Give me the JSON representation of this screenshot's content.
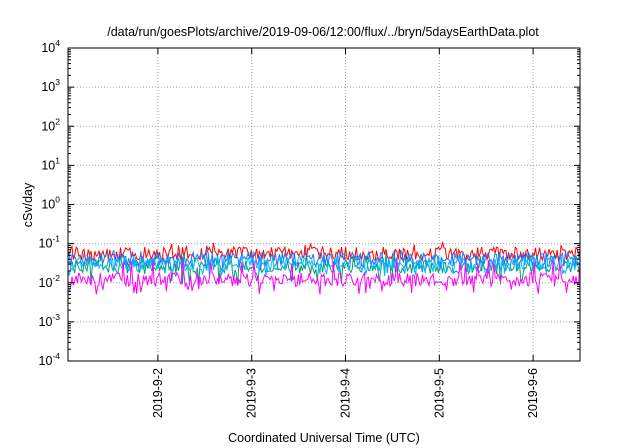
{
  "chart_data": {
    "type": "line",
    "title": "/data/run/goesPlots/archive/2019-09-06/12:00/flux/../bryn/5daysEarthData.plot",
    "xlabel": "Coordinated Universal Time (UTC)",
    "ylabel": "cSv/day",
    "y_scale": "log",
    "ylim": [
      0.0001,
      10000
    ],
    "xlim": [
      "2019-09-01 01:00",
      "2019-09-06 12:00"
    ],
    "grid": true,
    "x_ticks": [
      {
        "date": "2019-09-02",
        "label": "2019-9-2"
      },
      {
        "date": "2019-09-03",
        "label": "2019-9-3"
      },
      {
        "date": "2019-09-04",
        "label": "2019-9-4"
      },
      {
        "date": "2019-09-05",
        "label": "2019-9-5"
      },
      {
        "date": "2019-09-06",
        "label": "2019-9-6"
      }
    ],
    "y_ticks": [
      {
        "value": 0.0001,
        "base": "10",
        "exp": "-4"
      },
      {
        "value": 0.001,
        "base": "10",
        "exp": "-3"
      },
      {
        "value": 0.01,
        "base": "10",
        "exp": "-2"
      },
      {
        "value": 0.1,
        "base": "10",
        "exp": "-1"
      },
      {
        "value": 1,
        "base": "10",
        "exp": "0"
      },
      {
        "value": 10,
        "base": "10",
        "exp": "1"
      },
      {
        "value": 100,
        "base": "10",
        "exp": "2"
      },
      {
        "value": 1000,
        "base": "10",
        "exp": "3"
      },
      {
        "value": 10000,
        "base": "10",
        "exp": "4"
      }
    ],
    "series": [
      {
        "color": "#ff0000",
        "typical": 0.055,
        "min": 0.035,
        "max": 0.11
      },
      {
        "color": "#009e73",
        "typical": 0.025,
        "min": 0.009,
        "max": 0.06
      },
      {
        "color": "#1f77ff",
        "typical": 0.04,
        "min": 0.02,
        "max": 0.07
      },
      {
        "color": "#00b4ff",
        "typical": 0.03,
        "min": 0.015,
        "max": 0.05
      },
      {
        "color": "#ff00ff",
        "typical": 0.012,
        "min": 0.005,
        "max": 0.04
      }
    ]
  }
}
